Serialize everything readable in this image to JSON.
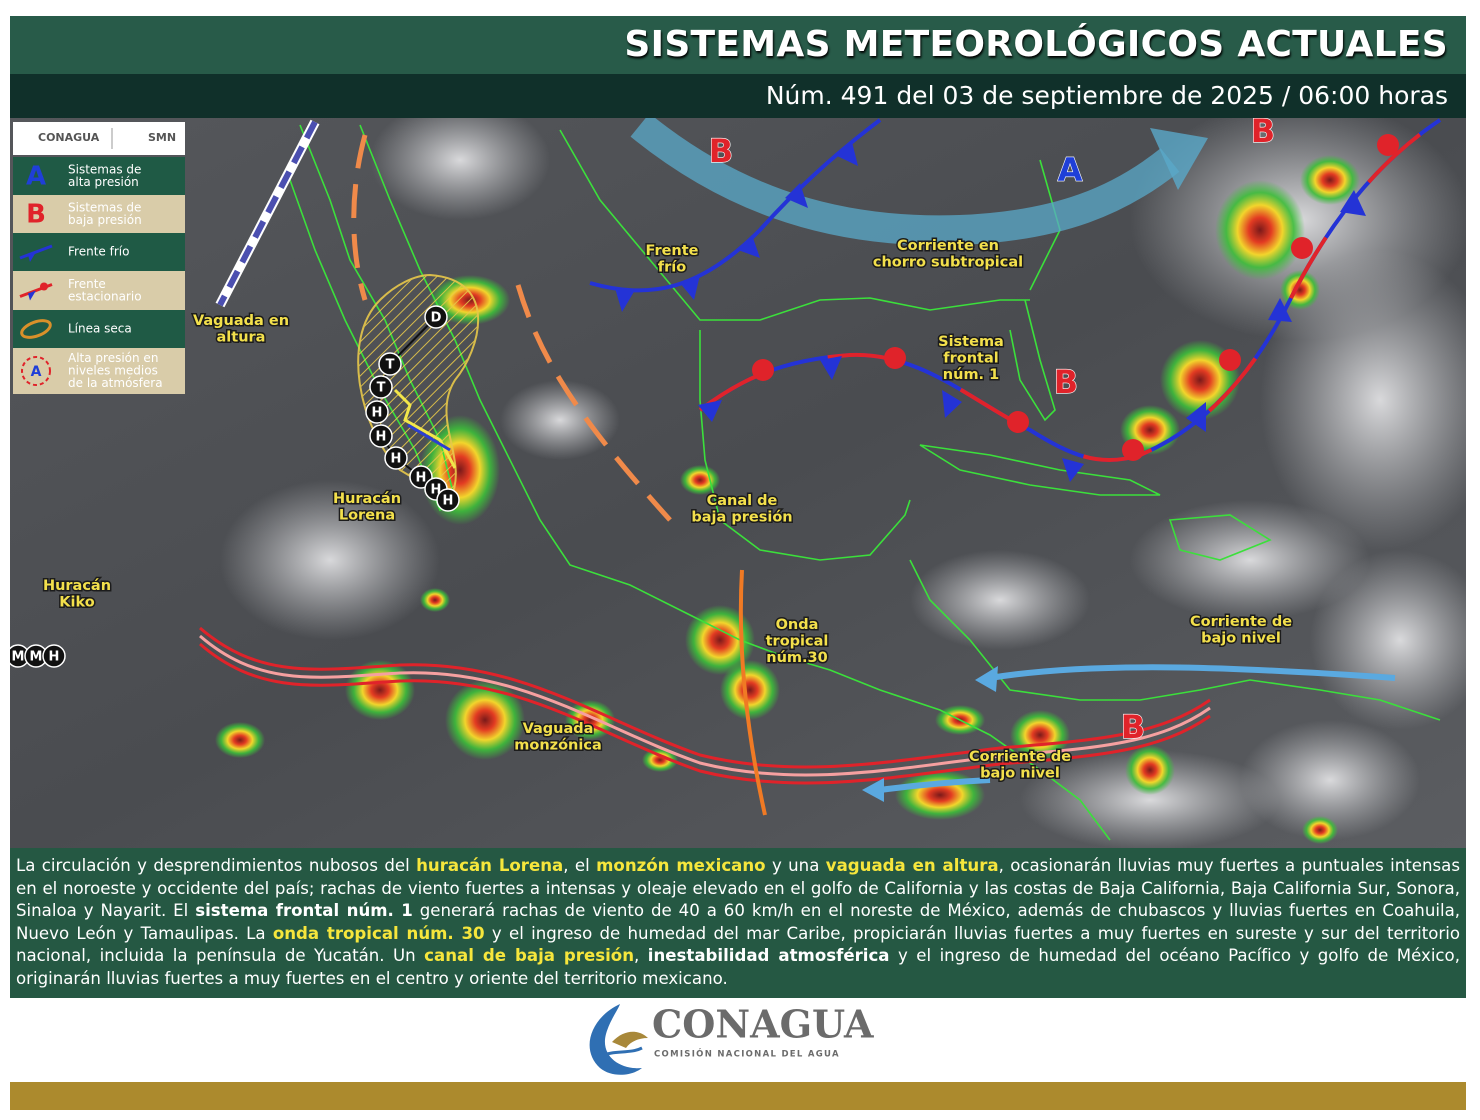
{
  "header": {
    "title": "SISTEMAS METEOROLÓGICOS ACTUALES",
    "subtitle": "Núm. 491 del 03 de septiembre de 2025 / 06:00 horas"
  },
  "agency_badge": {
    "left": "CONAGUA",
    "right": "SMN"
  },
  "legend": [
    {
      "symbol": "A",
      "lines": [
        "Sistemas de",
        "alta presión"
      ]
    },
    {
      "symbol": "B",
      "lines": [
        "Sistemas de",
        "baja presión"
      ]
    },
    {
      "lines": [
        "Frente frío"
      ]
    },
    {
      "lines": [
        "Frente",
        "estacionario"
      ]
    },
    {
      "lines": [
        "Línea seca"
      ]
    },
    {
      "symbol": "A",
      "lines": [
        "Alta presión en",
        "niveles medios",
        "de la atmósfera"
      ]
    }
  ],
  "map": {
    "labels": [
      {
        "lines": [
          "Vaguada en",
          "altura"
        ]
      },
      {
        "lines": [
          "Frente",
          "frío"
        ]
      },
      {
        "lines": [
          "Corriente en",
          "chorro subtropical"
        ]
      },
      {
        "lines": [
          "Sistema",
          "frontal",
          "núm. 1"
        ]
      },
      {
        "lines": [
          "Huracán",
          "Lorena"
        ]
      },
      {
        "lines": [
          "Canal de",
          "baja presión"
        ]
      },
      {
        "lines": [
          "Huracán",
          "Kiko"
        ]
      },
      {
        "lines": [
          "Onda",
          "tropical",
          "núm.30"
        ]
      },
      {
        "lines": [
          "Corriente de",
          "bajo nivel"
        ]
      },
      {
        "lines": [
          "Vaguada",
          "monzónica"
        ]
      },
      {
        "lines": [
          "Corriente de",
          "bajo nivel"
        ]
      }
    ],
    "pressure_centers": [
      {
        "letter": "B",
        "kind": "low"
      },
      {
        "letter": "A",
        "kind": "high"
      },
      {
        "letter": "B",
        "kind": "low"
      },
      {
        "letter": "B",
        "kind": "low"
      },
      {
        "letter": "B",
        "kind": "low"
      }
    ],
    "storm_tracks": [
      {
        "markers": [
          "D",
          "T",
          "T",
          "H",
          "H",
          "H",
          "H",
          "H",
          "H"
        ]
      },
      {
        "markers": [
          "M",
          "M",
          "H"
        ]
      }
    ]
  },
  "summary": [
    {
      "text": "La circulación y desprendimientos nubosos del "
    },
    {
      "text": "huracán Lorena",
      "style": "highlight"
    },
    {
      "text": ", el "
    },
    {
      "text": "monzón mexicano",
      "style": "highlight"
    },
    {
      "text": " y una "
    },
    {
      "text": "vaguada en altura",
      "style": "highlight"
    },
    {
      "text": ", ocasionarán lluvias muy fuertes a puntuales intensas en el noroeste y occidente del país; rachas de viento fuertes a intensas y oleaje elevado en el golfo de California y las costas de Baja California, Baja California Sur, Sonora, Sinaloa y Nayarit. El "
    },
    {
      "text": "sistema frontal núm. 1",
      "style": "bold"
    },
    {
      "text": " generará rachas de viento de 40 a 60 km/h en el noreste de México, además de chubascos y lluvias fuertes en Coahuila, Nuevo León y Tamaulipas. La "
    },
    {
      "text": "onda tropical núm. 30",
      "style": "highlight"
    },
    {
      "text": " y el ingreso de humedad del mar Caribe, propiciarán lluvias fuertes a muy fuertes en sureste y sur del territorio nacional, incluida la península de Yucatán. Un "
    },
    {
      "text": "canal de baja presión",
      "style": "highlight"
    },
    {
      "text": ", "
    },
    {
      "text": "inestabilidad atmosférica",
      "style": "bold"
    },
    {
      "text": " y el ingreso de humedad del océano Pacífico y golfo de México, originarán lluvias fuertes a muy fuertes en el centro y oriente del territorio mexicano."
    }
  ],
  "footer": {
    "logo": "CONAGUA",
    "tagline": "COMISIÓN NACIONAL DEL AGUA"
  }
}
